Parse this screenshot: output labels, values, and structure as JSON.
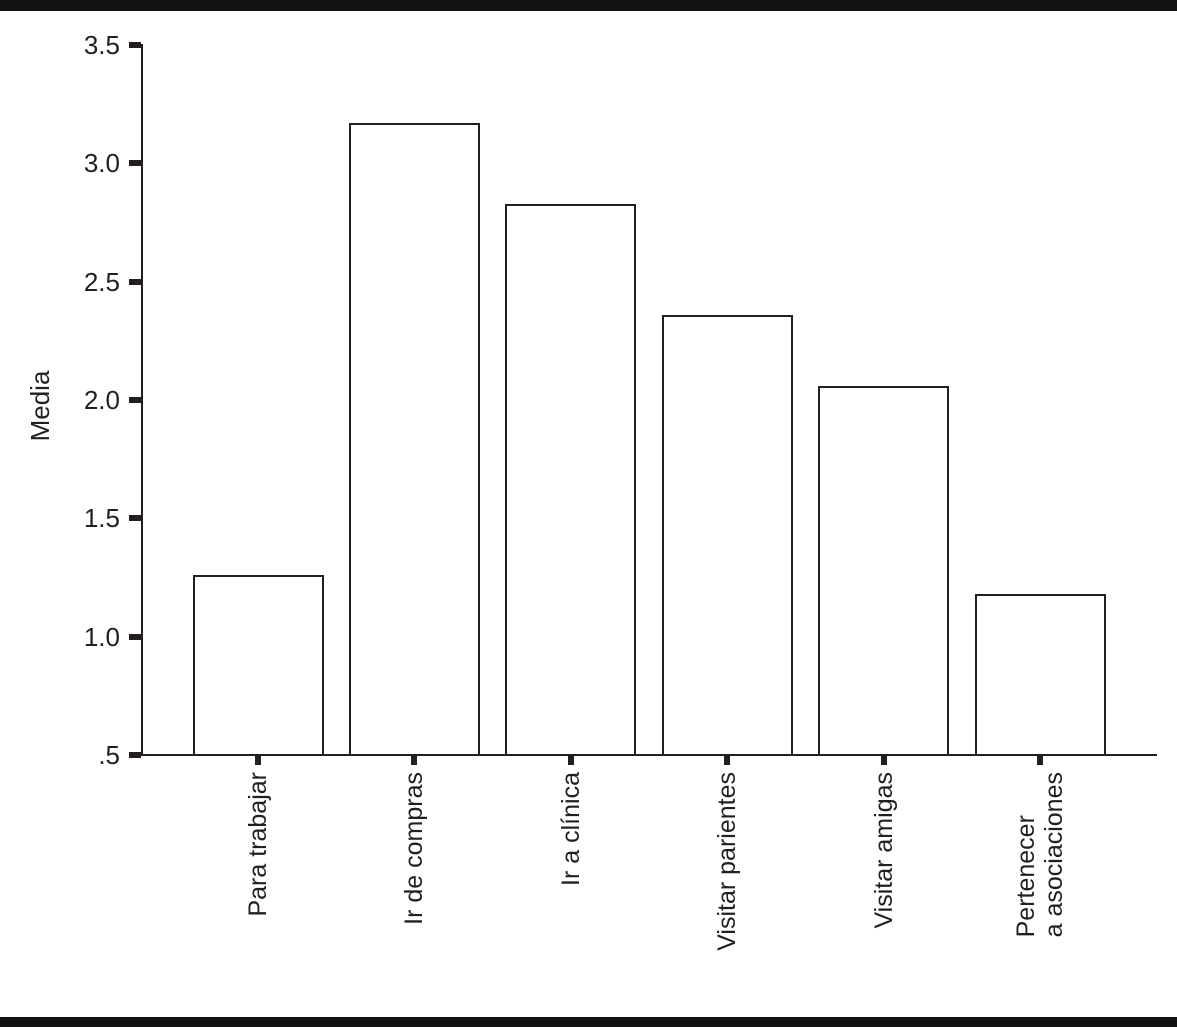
{
  "figure": {
    "background": "#ffffff",
    "rule_color": "#111111",
    "ink_color": "#231f20"
  },
  "chart_data": {
    "type": "bar",
    "title": "",
    "xlabel": "",
    "ylabel": "Media",
    "ylim": [
      0.5,
      3.5
    ],
    "grid": "off",
    "legend": "none",
    "bar_fill": "#ffffff",
    "bar_border": "#231f20",
    "yticks": [
      {
        "value": 3.5,
        "label": "3.5"
      },
      {
        "value": 3.0,
        "label": "3.0"
      },
      {
        "value": 2.5,
        "label": "2.5"
      },
      {
        "value": 2.0,
        "label": "2.0"
      },
      {
        "value": 1.5,
        "label": "1.5"
      },
      {
        "value": 1.0,
        "label": "1.0"
      },
      {
        "value": 0.5,
        "label": ".5"
      }
    ],
    "categories": [
      "Para trabajar",
      "Ir de compras",
      "Ir a clínica",
      "Visitar parientes",
      "Visitar amigas",
      "Pertenecer\na asociaciones"
    ],
    "values": [
      1.26,
      3.17,
      2.83,
      2.36,
      2.06,
      1.18
    ]
  }
}
